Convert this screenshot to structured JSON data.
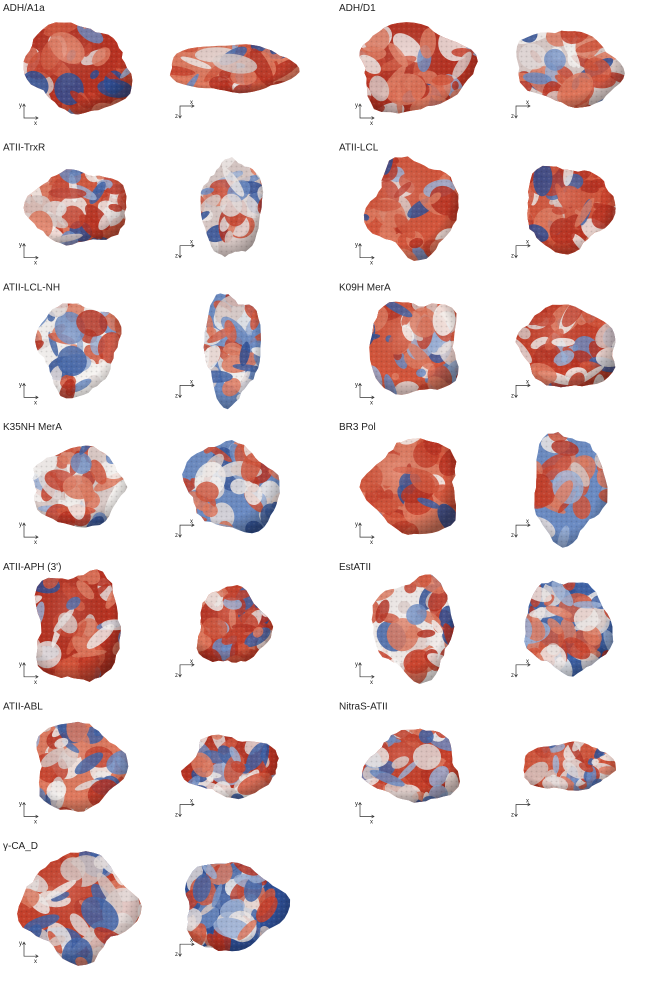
{
  "panels": [
    {
      "label": "ADH/A1a"
    },
    {
      "label": "ADH/D1"
    },
    {
      "label": "ATII-TrxR"
    },
    {
      "label": "ATII-LCL"
    },
    {
      "label": "ATII-LCL-NH"
    },
    {
      "label": "K09H MerA"
    },
    {
      "label": "K35NH MerA"
    },
    {
      "label": "BR3 Pol"
    },
    {
      "label": "ATII-APH (3')"
    },
    {
      "label": "EstATII"
    },
    {
      "label": "ATII-ABL"
    },
    {
      "label": "NitraS-ATII"
    },
    {
      "label": "γ-CA_D"
    }
  ],
  "axes": {
    "x": "x",
    "y": "y",
    "z": "z"
  }
}
